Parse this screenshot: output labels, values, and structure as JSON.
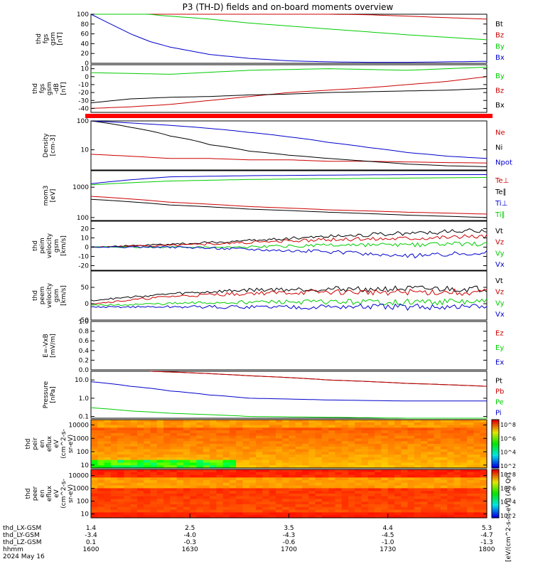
{
  "title": "P3 (TH-D) fields and on-board moments overview",
  "chart_data": [
    {
      "type": "line",
      "panel": "fgs_gsm_total",
      "ylabel": [
        "thd",
        "fgs",
        "gsm",
        "[nT]"
      ],
      "ylim": [
        0,
        100
      ],
      "yticks": [
        "100",
        "80",
        "60",
        "40",
        "20",
        "0"
      ],
      "series": [
        {
          "name": "Bt",
          "color": "#000000",
          "x": [
            0,
            0.1,
            0.5,
            1
          ],
          "y": [
            100,
            100,
            100,
            100
          ]
        },
        {
          "name": "Bz",
          "color": "#cc0000",
          "x": [
            0,
            0.1,
            0.2,
            0.3,
            0.4,
            0.5,
            0.6,
            0.7,
            0.8,
            0.9,
            1
          ],
          "y": [
            102,
            101,
            100,
            100,
            100,
            100,
            100,
            99,
            96,
            93,
            90
          ]
        },
        {
          "name": "By",
          "color": "#00cc00",
          "x": [
            0,
            0.1,
            0.2,
            0.3,
            0.4,
            0.5,
            0.6,
            0.7,
            0.8,
            0.9,
            1
          ],
          "y": [
            110,
            103,
            96,
            90,
            82,
            76,
            70,
            64,
            58,
            53,
            48
          ]
        },
        {
          "name": "Bx",
          "color": "#0000cc",
          "x": [
            0,
            0.05,
            0.1,
            0.15,
            0.2,
            0.3,
            0.4,
            0.5,
            0.6,
            0.7,
            0.8,
            0.9,
            1
          ],
          "y": [
            100,
            80,
            60,
            44,
            33,
            18,
            10,
            5,
            3,
            2,
            2,
            3,
            4
          ]
        }
      ]
    },
    {
      "type": "line",
      "panel": "fgs_gsm_components",
      "ylabel": [
        "thd",
        "fgs",
        "gsm",
        "-dB",
        "[nT]"
      ],
      "ylim": [
        -45,
        15
      ],
      "yticks": [
        "10",
        "0",
        "-10",
        "-20",
        "-30",
        "-40"
      ],
      "series": [
        {
          "name": "By",
          "color": "#00cc00",
          "x": [
            0,
            0.2,
            0.4,
            0.6,
            0.8,
            1
          ],
          "y": [
            5,
            3,
            8,
            10,
            8,
            12
          ]
        },
        {
          "name": "Bz",
          "color": "#cc0000",
          "x": [
            0,
            0.1,
            0.2,
            0.3,
            0.4,
            0.5,
            0.6,
            0.7,
            0.8,
            0.9,
            1
          ],
          "y": [
            -40,
            -38,
            -35,
            -30,
            -25,
            -20,
            -17,
            -14,
            -10,
            -6,
            0
          ]
        },
        {
          "name": "Bx",
          "color": "#000000",
          "x": [
            0,
            0.1,
            0.2,
            0.3,
            0.4,
            0.5,
            0.6,
            0.7,
            0.8,
            0.9,
            1
          ],
          "y": [
            -33,
            -28,
            -26,
            -25,
            -23,
            -22,
            -20,
            -19,
            -18,
            -17,
            -15
          ]
        }
      ]
    },
    {
      "type": "bar",
      "panel": "mode_bar",
      "color": "#ff0000"
    },
    {
      "type": "line",
      "panel": "density",
      "ylabel": [
        "Density",
        "[cm-3]"
      ],
      "yscale": "log",
      "ylim": [
        2,
        100
      ],
      "yticks": [
        "100",
        "10"
      ],
      "series": [
        {
          "name": "Ne",
          "color": "#cc0000",
          "x": [
            0,
            0.1,
            0.2,
            0.3,
            0.4,
            0.5,
            0.6,
            0.7,
            0.8,
            0.9,
            1
          ],
          "y": [
            7,
            6,
            5,
            5,
            4.5,
            4.5,
            4,
            4,
            3.8,
            3.6,
            3.5
          ]
        },
        {
          "name": "Ni",
          "color": "#000000",
          "x": [
            0,
            0.1,
            0.2,
            0.3,
            0.4,
            0.5,
            0.6,
            0.7,
            0.8,
            0.9,
            1
          ],
          "y": [
            100,
            60,
            30,
            15,
            9,
            6.5,
            5,
            4,
            3.2,
            2.8,
            2.6
          ]
        },
        {
          "name": "Npot",
          "color": "#0000cc",
          "x": [
            0,
            0.1,
            0.2,
            0.3,
            0.4,
            0.5,
            0.6,
            0.7,
            0.8,
            0.9,
            1
          ],
          "y": [
            100,
            85,
            70,
            55,
            40,
            28,
            18,
            12,
            8,
            6,
            5
          ]
        }
      ]
    },
    {
      "type": "line",
      "panel": "temperature",
      "ylabel": [
        "mom3",
        "[eV]"
      ],
      "yscale": "log",
      "ylim": [
        80,
        3500
      ],
      "yticks": [
        "1000",
        "100"
      ],
      "series": [
        {
          "name": "Te⊥",
          "color": "#cc0000",
          "x": [
            0,
            0.2,
            0.4,
            0.6,
            0.8,
            1
          ],
          "y": [
            500,
            320,
            230,
            180,
            150,
            130
          ]
        },
        {
          "name": "Te∥",
          "color": "#000000",
          "x": [
            0,
            0.2,
            0.4,
            0.6,
            0.8,
            1
          ],
          "y": [
            400,
            260,
            190,
            150,
            120,
            100
          ]
        },
        {
          "name": "Ti⊥",
          "color": "#0000cc",
          "x": [
            0,
            0.2,
            0.4,
            0.6,
            0.8,
            1
          ],
          "y": [
            1300,
            2200,
            2400,
            2500,
            2600,
            2600
          ]
        },
        {
          "name": "Ti∥",
          "color": "#00cc00",
          "x": [
            0,
            0.2,
            0.4,
            0.6,
            0.8,
            1
          ],
          "y": [
            1200,
            1600,
            1800,
            1900,
            2000,
            2100
          ]
        }
      ]
    },
    {
      "type": "line",
      "panel": "peim_velocity",
      "ylabel": [
        "thd",
        "peim",
        "velocity",
        "gsm",
        "[km/s]"
      ],
      "ylim": [
        -25,
        28
      ],
      "yticks": [
        "20",
        "10",
        "0",
        "-10",
        "-20"
      ],
      "series": [
        {
          "name": "Vt",
          "color": "#000000",
          "x": [
            0,
            0.2,
            0.4,
            0.6,
            0.8,
            1
          ],
          "y": [
            0,
            3,
            7,
            12,
            15,
            18
          ]
        },
        {
          "name": "Vz",
          "color": "#cc0000",
          "x": [
            0,
            0.2,
            0.4,
            0.6,
            0.8,
            1
          ],
          "y": [
            0,
            2,
            5,
            8,
            10,
            12
          ]
        },
        {
          "name": "Vy",
          "color": "#00cc00",
          "x": [
            0,
            0.2,
            0.4,
            0.6,
            0.8,
            1
          ],
          "y": [
            0,
            0,
            0,
            2,
            2,
            4
          ]
        },
        {
          "name": "Vx",
          "color": "#0000cc",
          "x": [
            0,
            0.2,
            0.4,
            0.6,
            0.8,
            1
          ],
          "y": [
            0,
            0,
            -2,
            -5,
            -10,
            -5
          ]
        }
      ]
    },
    {
      "type": "line",
      "panel": "peem_velocity",
      "ylabel": [
        "thd",
        "peem",
        "velocity",
        "gsm",
        "[km/s]"
      ],
      "ylim": [
        -50,
        100
      ],
      "yticks": [
        "50",
        "0",
        "-50"
      ],
      "series": [
        {
          "name": "Vt",
          "color": "#000000",
          "x": [
            0,
            0.2,
            0.4,
            0.6,
            0.8,
            1
          ],
          "y": [
            10,
            30,
            42,
            45,
            45,
            45
          ]
        },
        {
          "name": "Vz",
          "color": "#cc0000",
          "x": [
            0,
            0.2,
            0.4,
            0.6,
            0.8,
            1
          ],
          "y": [
            0,
            22,
            32,
            35,
            35,
            35
          ]
        },
        {
          "name": "Vy",
          "color": "#00cc00",
          "x": [
            0,
            0.2,
            0.4,
            0.6,
            0.8,
            1
          ],
          "y": [
            -5,
            0,
            5,
            5,
            5,
            5
          ]
        },
        {
          "name": "Vx",
          "color": "#0000cc",
          "x": [
            0,
            0.2,
            0.4,
            0.6,
            0.8,
            1
          ],
          "y": [
            -10,
            -10,
            -10,
            -10,
            -10,
            -10
          ]
        }
      ]
    },
    {
      "type": "line",
      "panel": "e_field",
      "ylabel": [
        "E=-VxB",
        "[mV/m]"
      ],
      "ylim": [
        0,
        1
      ],
      "yticks": [
        "1.0",
        "0.8",
        "0.6",
        "0.4",
        "0.2",
        "0.0"
      ],
      "series": [
        {
          "name": "Ez",
          "color": "#cc0000",
          "x": [],
          "y": []
        },
        {
          "name": "Ey",
          "color": "#00cc00",
          "x": [],
          "y": []
        },
        {
          "name": "Ex",
          "color": "#0000cc",
          "x": [],
          "y": []
        }
      ]
    },
    {
      "type": "line",
      "panel": "pressure",
      "ylabel": [
        "Pressure",
        "[nPa]"
      ],
      "yscale": "log",
      "ylim": [
        0.08,
        30
      ],
      "yticks": [
        "10.0",
        "1.0",
        "0.1"
      ],
      "series": [
        {
          "name": "Pt",
          "color": "#000000",
          "x": [
            0.15,
            0.4,
            0.6,
            0.8,
            1
          ],
          "y": [
            30,
            17,
            10,
            6.5,
            4.5
          ]
        },
        {
          "name": "Pb",
          "color": "#cc0000",
          "x": [
            0.15,
            0.4,
            0.6,
            0.8,
            1
          ],
          "y": [
            30,
            17,
            10,
            6.5,
            4.5
          ]
        },
        {
          "name": "Pe",
          "color": "#00cc00",
          "x": [
            0,
            0.1,
            0.2,
            0.4,
            0.6,
            0.8,
            1
          ],
          "y": [
            0.3,
            0.2,
            0.15,
            0.1,
            0.09,
            0.08,
            0.08
          ]
        },
        {
          "name": "Pi",
          "color": "#0000cc",
          "x": [
            0,
            0.1,
            0.2,
            0.3,
            0.4,
            0.6,
            0.8,
            1
          ],
          "y": [
            8,
            4.5,
            2.5,
            1.5,
            1.0,
            0.8,
            0.7,
            0.7
          ]
        }
      ]
    },
    {
      "type": "heatmap",
      "panel": "peir_en_eflux",
      "ylabel": [
        "thd",
        "peir",
        "en",
        "eflux",
        "eV",
        "(cm^2-s-",
        "sr-eV)"
      ],
      "yscale": "log",
      "ylim": [
        6,
        25000
      ],
      "yticks": [
        "10000",
        "1000",
        "100",
        "10"
      ]
    },
    {
      "type": "heatmap",
      "panel": "peer_en_eflux",
      "ylabel": [
        "thd",
        "peer",
        "en",
        "eflux",
        "eV",
        "(cm^2-s-",
        "sr-eV)"
      ],
      "yscale": "log",
      "ylim": [
        5,
        30000
      ],
      "yticks": [
        "10000",
        "1000",
        "100",
        "10"
      ]
    }
  ],
  "colorbars": {
    "ticks": [
      "10^8",
      "10^6",
      "10^4",
      "10^2"
    ],
    "unit": "[eV/(cm^2-s-sr-eV)] (All Qs)"
  },
  "x_axis": {
    "ticks_x": [
      0,
      0.25,
      0.5,
      0.75,
      1
    ],
    "rows": [
      {
        "label": "thd_LX-GSM",
        "values": [
          "1.4",
          "2.5",
          "3.5",
          "4.4",
          "5.3"
        ]
      },
      {
        "label": "thd_LY-GSM",
        "values": [
          "-3.4",
          "-4.0",
          "-4.3",
          "-4.5",
          "-4.7"
        ]
      },
      {
        "label": "thd_LZ-GSM",
        "values": [
          "0.1",
          "-0.3",
          "-0.6",
          "-1.0",
          "-1.3"
        ]
      },
      {
        "label": "hhmm",
        "values": [
          "1600",
          "1630",
          "1700",
          "1730",
          "1800"
        ]
      }
    ],
    "date": "2024 May 16"
  }
}
